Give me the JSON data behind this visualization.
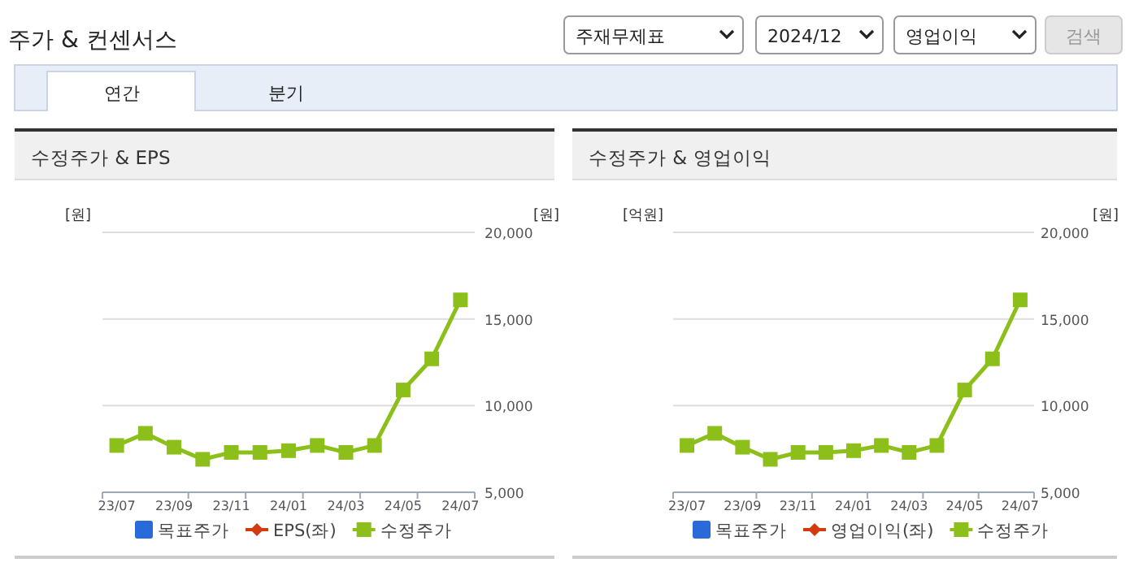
{
  "chart_data": [
    {
      "type": "other",
      "title": "주가 & 컨센서스",
      "annotations": [
        "주재무제표",
        "2024/12",
        "영업이익",
        "검색",
        "연간",
        "분기"
      ]
    },
    {
      "type": "line",
      "title": "수정주가 & EPS",
      "ylabel": "[원]",
      "y2label": "[원]",
      "categories": [
        "23/07",
        null,
        "23/09",
        null,
        "23/11",
        null,
        "24/01",
        null,
        "24/03",
        null,
        "24/05",
        null,
        "24/07"
      ],
      "y2lim": [
        5000,
        20000
      ],
      "y2ticks": [
        {
          "value": 5000,
          "label": "5,000"
        },
        {
          "value": 10000,
          "label": "10,000"
        },
        {
          "value": 15000,
          "label": "15,000"
        },
        {
          "value": 20000,
          "label": "20,000"
        }
      ],
      "grid": "y",
      "legend": "bottom",
      "series": [
        {
          "name": "목표주가",
          "type": "bar",
          "color": "#2a6ad8",
          "values": [
            null,
            null,
            null,
            null,
            null,
            null,
            null,
            null,
            null,
            null,
            null,
            null,
            null
          ]
        },
        {
          "name": "EPS(좌)",
          "type": "line",
          "marker": "diamond",
          "color": "#d33a12",
          "values": [
            null,
            null,
            null,
            null,
            null,
            null,
            null,
            null,
            null,
            null,
            null,
            null,
            null
          ]
        },
        {
          "name": "수정주가",
          "type": "line",
          "marker": "square",
          "axis": "y2",
          "color": "#8cbf1a",
          "values": [
            7700,
            8400,
            7600,
            6900,
            7300,
            7300,
            7400,
            7700,
            7300,
            7700,
            10900,
            12700,
            16100
          ]
        }
      ]
    },
    {
      "type": "line",
      "title": "수정주가 & 영업이익",
      "ylabel": "[억원]",
      "y2label": "[원]",
      "categories": [
        "23/07",
        null,
        "23/09",
        null,
        "23/11",
        null,
        "24/01",
        null,
        "24/03",
        null,
        "24/05",
        null,
        "24/07"
      ],
      "y2lim": [
        5000,
        20000
      ],
      "y2ticks": [
        {
          "value": 5000,
          "label": "5,000"
        },
        {
          "value": 10000,
          "label": "10,000"
        },
        {
          "value": 15000,
          "label": "15,000"
        },
        {
          "value": 20000,
          "label": "20,000"
        }
      ],
      "grid": "y",
      "legend": "bottom",
      "series": [
        {
          "name": "목표주가",
          "type": "bar",
          "color": "#2a6ad8",
          "values": [
            null,
            null,
            null,
            null,
            null,
            null,
            null,
            null,
            null,
            null,
            null,
            null,
            null
          ]
        },
        {
          "name": "영업이익(좌)",
          "type": "line",
          "marker": "diamond",
          "color": "#d33a12",
          "values": [
            null,
            null,
            null,
            null,
            null,
            null,
            null,
            null,
            null,
            null,
            null,
            null,
            null
          ]
        },
        {
          "name": "수정주가",
          "type": "line",
          "marker": "square",
          "axis": "y2",
          "color": "#8cbf1a",
          "values": [
            7700,
            8400,
            7600,
            6900,
            7300,
            7300,
            7400,
            7700,
            7300,
            7700,
            10900,
            12700,
            16100
          ]
        }
      ]
    }
  ]
}
